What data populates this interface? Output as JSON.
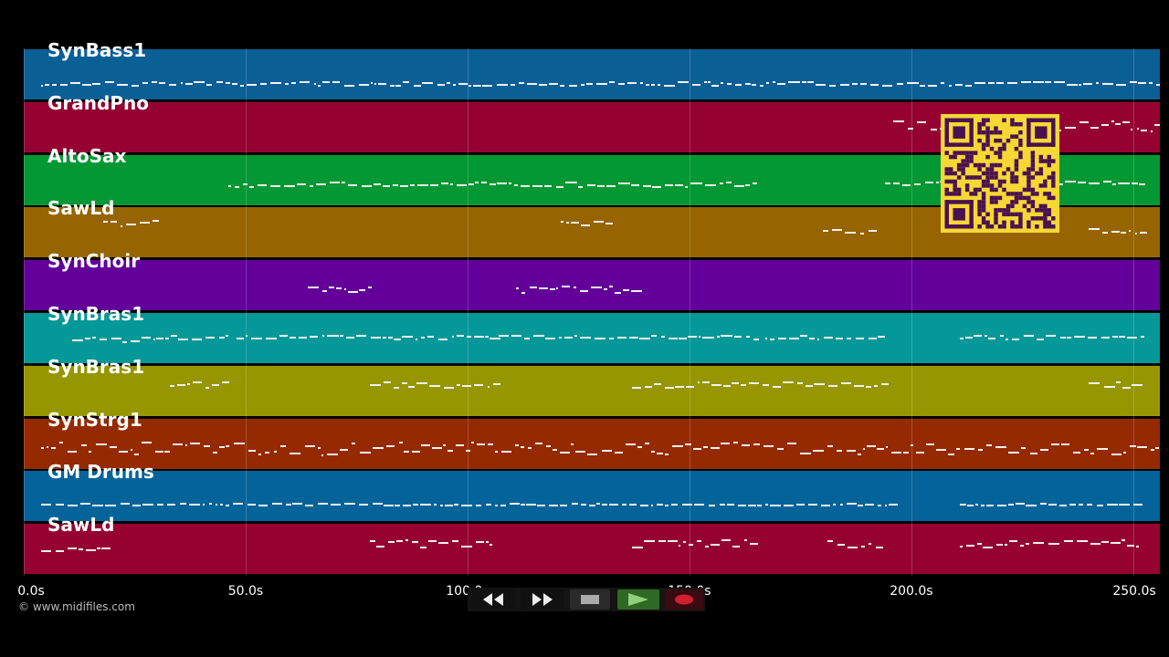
{
  "tracks": [
    {
      "label": "SynBass1",
      "color": "#0a5f95"
    },
    {
      "label": "GrandPno",
      "color": "#950232"
    },
    {
      "label": "AltoSax",
      "color": "#039833"
    },
    {
      "label": "SawLd",
      "color": "#966400"
    },
    {
      "label": "SynChoir",
      "color": "#620099"
    },
    {
      "label": "SynBras1",
      "color": "#059898"
    },
    {
      "label": "SynBras1",
      "color": "#969600"
    },
    {
      "label": "SynStrg1",
      "color": "#952a01"
    },
    {
      "label": "GM Drums",
      "color": "#04649a"
    },
    {
      "label": "SawLd",
      "color": "#950232"
    }
  ],
  "time_axis": {
    "ticks": [
      "0.0s",
      "50.0s",
      "100.0s",
      "150.0s",
      "200.0s",
      "250.0s"
    ],
    "tick_seconds": [
      0,
      50,
      100,
      150,
      200,
      250
    ],
    "max_seconds": 256
  },
  "copyright": "© www.midifiles.com",
  "transport": {
    "rewind_icon": "rewind-icon",
    "fast_forward_icon": "fast-forward-icon",
    "stop_icon": "stop-icon",
    "play_icon": "play-icon",
    "record_icon": "record-icon",
    "play_color": "#3a7a2a",
    "record_color": "#d02030"
  },
  "qr_colors": {
    "background": "#f5d833",
    "module": "#4a1050"
  }
}
